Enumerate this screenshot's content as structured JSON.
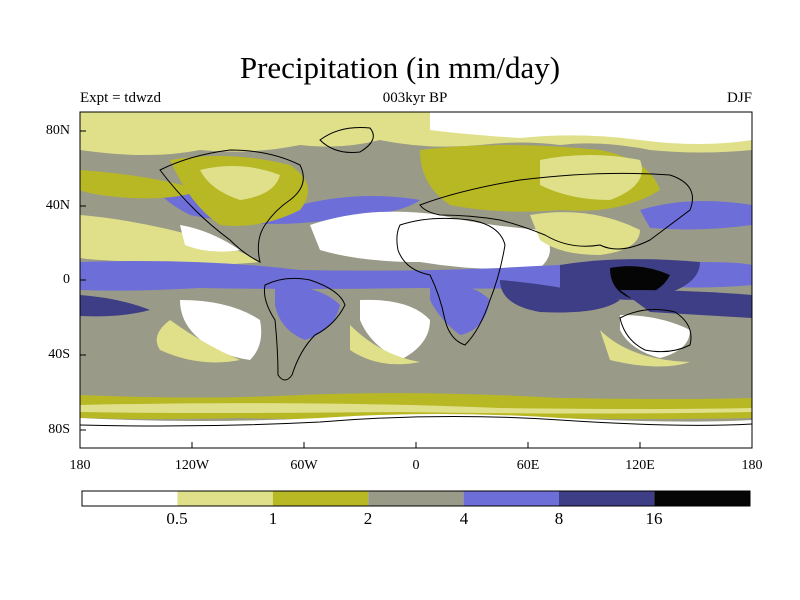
{
  "figure": {
    "title": "Precipitation (in mm/day)",
    "experiment_label": "Expt = tdwzd",
    "period_label": "003kyr BP",
    "season_label": "DJF"
  },
  "map": {
    "type": "filled-contour-world-map",
    "projection": "cylindrical-equidistant",
    "lon_range": [
      -180,
      180
    ],
    "lat_range": [
      -90,
      90
    ],
    "x_tick_labels": [
      "180",
      "120W",
      "60W",
      "0",
      "60E",
      "120E",
      "180"
    ],
    "y_tick_labels": [
      "80N",
      "40N",
      "0",
      "40S",
      "80S"
    ],
    "coastlines": true
  },
  "colorbar": {
    "colors": [
      "#ffffff",
      "#e0e08a",
      "#b8b825",
      "#9a9a88",
      "#6e6ed8",
      "#3e3e86",
      "#050505"
    ],
    "tick_labels": [
      "0.5",
      "1",
      "2",
      "4",
      "8",
      "16"
    ]
  }
}
